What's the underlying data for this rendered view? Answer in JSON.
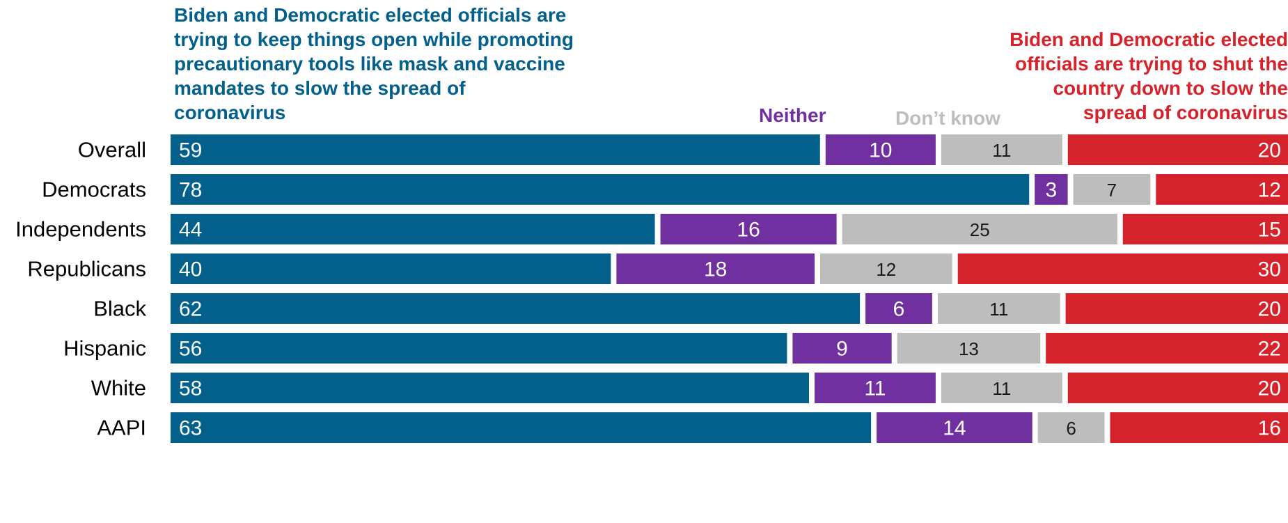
{
  "headers": {
    "left": "Biden and Democratic elected officials are trying to keep things open while promoting precautionary tools like mask and vaccine mandates to slow the spread of coronavirus",
    "neither": "Neither",
    "dont_know": "Don’t know",
    "right": "Biden and Democratic elected officials are trying to shut the country down to slow the spread of coronavirus"
  },
  "colors": {
    "open": "#02608b",
    "neither": "#7030a0",
    "dont_know": "#bdbdbd",
    "shut": "#d6222a",
    "label_light": "#ffffff",
    "label_dark": "#1a1a1a"
  },
  "chart_data": {
    "type": "bar",
    "orientation": "horizontal",
    "stacked": true,
    "categories": [
      "Overall",
      "Democrats",
      "Independents",
      "Republicans",
      "Black",
      "Hispanic",
      "White",
      "AAPI"
    ],
    "groups": [
      [
        "Overall"
      ],
      [
        "Democrats",
        "Independents",
        "Republicans"
      ],
      [
        "Black",
        "Hispanic",
        "White",
        "AAPI"
      ]
    ],
    "series": [
      {
        "name": "Biden and Democratic elected officials are trying to keep things open while promoting precautionary tools like mask and vaccine mandates to slow the spread of coronavirus",
        "values": [
          59,
          78,
          44,
          40,
          62,
          56,
          58,
          63
        ]
      },
      {
        "name": "Neither",
        "values": [
          10,
          3,
          16,
          18,
          6,
          9,
          11,
          14
        ]
      },
      {
        "name": "Don’t know",
        "values": [
          11,
          7,
          25,
          12,
          11,
          13,
          11,
          6
        ]
      },
      {
        "name": "Biden and Democratic elected officials are trying to shut the country down to slow the spread of coronavirus",
        "values": [
          20,
          12,
          15,
          30,
          20,
          22,
          20,
          16
        ]
      }
    ],
    "data_labels": true
  }
}
